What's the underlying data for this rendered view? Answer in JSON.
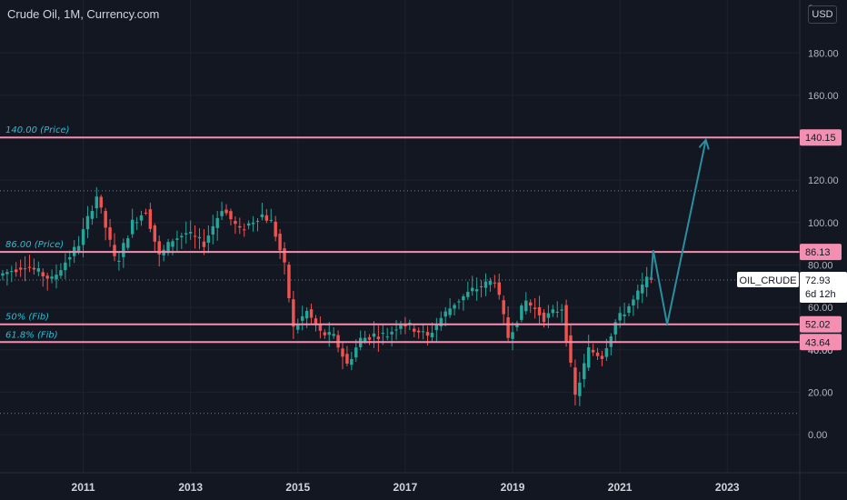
{
  "header": {
    "title": "Crude Oil, 1M, Currency.com",
    "currency_button": "USD",
    "top_clipped_label": "2"
  },
  "colors": {
    "background": "#131722",
    "grid": "#1e222d",
    "up_candle": "#26a69a",
    "down_candle": "#ef5350",
    "level_line": "#f48fb1",
    "projection": "#2a8fa0",
    "annotation_text": "#22c1d8",
    "axis_text": "#b2b5be"
  },
  "chart_data": {
    "type": "candlestick",
    "title": "Crude Oil, 1M, Currency.com",
    "interval": "1M",
    "x_ticks": [
      "2011",
      "2013",
      "2015",
      "2017",
      "2019",
      "2021",
      "2023"
    ],
    "y_ticks": [
      "0.00",
      "20.00",
      "40.00",
      "60.00",
      "80.00",
      "100.00",
      "120.00",
      "140.00",
      "160.00",
      "180.00"
    ],
    "ylim": [
      -18,
      205
    ],
    "xlim": [
      2009.45,
      2024.35
    ],
    "grid": true,
    "price_path": [
      [
        2009.5,
        75
      ],
      [
        2010.0,
        80
      ],
      [
        2010.5,
        73
      ],
      [
        2011.0,
        90
      ],
      [
        2011.33,
        113
      ],
      [
        2011.7,
        80
      ],
      [
        2012.0,
        100
      ],
      [
        2012.25,
        106
      ],
      [
        2012.5,
        84
      ],
      [
        2012.75,
        92
      ],
      [
        2013.0,
        95
      ],
      [
        2013.33,
        90
      ],
      [
        2013.67,
        107
      ],
      [
        2014.0,
        96
      ],
      [
        2014.4,
        104
      ],
      [
        2014.6,
        100
      ],
      [
        2014.83,
        80
      ],
      [
        2015.0,
        50
      ],
      [
        2015.25,
        58
      ],
      [
        2015.5,
        48
      ],
      [
        2015.75,
        46
      ],
      [
        2016.0,
        33
      ],
      [
        2016.25,
        45
      ],
      [
        2016.5,
        47
      ],
      [
        2016.75,
        47
      ],
      [
        2017.0,
        53
      ],
      [
        2017.33,
        49
      ],
      [
        2017.5,
        46
      ],
      [
        2017.75,
        55
      ],
      [
        2018.0,
        62
      ],
      [
        2018.33,
        68
      ],
      [
        2018.75,
        73
      ],
      [
        2019.0,
        46
      ],
      [
        2019.33,
        63
      ],
      [
        2019.67,
        55
      ],
      [
        2020.0,
        60
      ],
      [
        2020.25,
        18
      ],
      [
        2020.5,
        40
      ],
      [
        2020.75,
        37
      ],
      [
        2021.0,
        53
      ],
      [
        2021.33,
        63
      ],
      [
        2021.58,
        72.93
      ]
    ],
    "last_price": 72.93,
    "last_price_symbol": "OIL_CRUDE",
    "last_price_countdown": "6d 12h",
    "horizontal_levels": [
      {
        "price": 140.15,
        "label": "140.00 (Price)",
        "axis_label": "140.15"
      },
      {
        "price": 86.13,
        "label": "86.00 (Price)",
        "axis_label": "86.13"
      },
      {
        "price": 52.02,
        "label": "50% (Fib)",
        "axis_label": "52.02"
      },
      {
        "price": 43.64,
        "label": "61.8% (Fib)",
        "axis_label": "43.64"
      }
    ],
    "dotted_levels": [
      115,
      72.93,
      10
    ],
    "projection_path": [
      [
        2021.58,
        72.93
      ],
      [
        2021.62,
        87
      ],
      [
        2021.88,
        52
      ],
      [
        2022.6,
        139
      ]
    ],
    "clipped_axis_label": "40.00"
  }
}
